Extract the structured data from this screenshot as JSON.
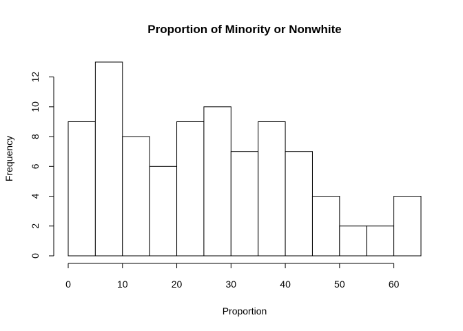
{
  "chart_data": {
    "type": "bar",
    "title": "Proportion of Minority or Nonwhite",
    "xlabel": "Proportion",
    "ylabel": "Frequency",
    "bins": [
      {
        "start": 0,
        "end": 5,
        "value": 9
      },
      {
        "start": 5,
        "end": 10,
        "value": 13
      },
      {
        "start": 10,
        "end": 15,
        "value": 8
      },
      {
        "start": 15,
        "end": 20,
        "value": 6
      },
      {
        "start": 20,
        "end": 25,
        "value": 9
      },
      {
        "start": 25,
        "end": 30,
        "value": 10
      },
      {
        "start": 30,
        "end": 35,
        "value": 7
      },
      {
        "start": 35,
        "end": 40,
        "value": 9
      },
      {
        "start": 40,
        "end": 45,
        "value": 7
      },
      {
        "start": 45,
        "end": 50,
        "value": 4
      },
      {
        "start": 50,
        "end": 55,
        "value": 2
      },
      {
        "start": 55,
        "end": 60,
        "value": 2
      },
      {
        "start": 60,
        "end": 65,
        "value": 4
      }
    ],
    "xlim": [
      0,
      65
    ],
    "ylim": [
      0,
      13
    ],
    "xticks": [
      "0",
      "10",
      "20",
      "30",
      "40",
      "50",
      "60"
    ],
    "yticks": [
      "0",
      "2",
      "4",
      "6",
      "8",
      "10",
      "12"
    ],
    "grid": false,
    "legend": "none",
    "bar_fill": "#ffffff",
    "bar_stroke": "#000000"
  }
}
